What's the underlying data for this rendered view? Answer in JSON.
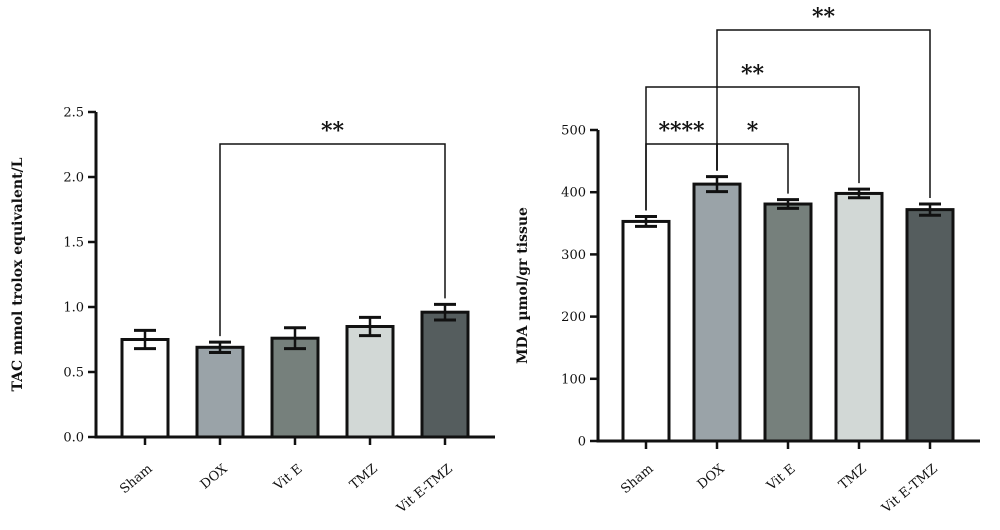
{
  "chart_data": [
    {
      "type": "bar",
      "title": "",
      "categories": [
        "Sham",
        "DOX",
        "Vit E",
        "TMZ",
        "Vit E-TMZ"
      ],
      "values": [
        0.75,
        0.69,
        0.76,
        0.85,
        0.96
      ],
      "errors": [
        0.07,
        0.04,
        0.08,
        0.07,
        0.06
      ],
      "colors": [
        "#ffffff",
        "#9aa3a8",
        "#76807c",
        "#d2d8d6",
        "#555d5e"
      ],
      "xlabel": "",
      "ylabel": "TAC mmol trolox equivalent/L",
      "ylim": [
        0,
        2.5
      ],
      "yticks": [
        "0.0",
        "0.5",
        "1.0",
        "1.5",
        "2.0",
        "2.5"
      ],
      "grid": false,
      "significance": [
        {
          "from": 1,
          "to": 4,
          "label": "**"
        }
      ]
    },
    {
      "type": "bar",
      "title": "",
      "categories": [
        "Sham",
        "DOX",
        "Vit E",
        "TMZ",
        "Vit E-TMZ"
      ],
      "values": [
        353,
        413,
        381,
        398,
        372
      ],
      "errors": [
        8,
        12,
        7,
        7,
        9
      ],
      "colors": [
        "#ffffff",
        "#9aa3a8",
        "#76807c",
        "#d2d8d6",
        "#555d5e"
      ],
      "xlabel": "",
      "ylabel": "MDA µmol/gr tissue",
      "ylim": [
        0,
        500
      ],
      "yticks": [
        "0",
        "100",
        "200",
        "300",
        "400",
        "500"
      ],
      "grid": false,
      "significance": [
        {
          "from": 0,
          "to": 1,
          "label": "****"
        },
        {
          "from": 1,
          "to": 2,
          "label": "*"
        },
        {
          "from": 0,
          "to": 3,
          "label": "**"
        },
        {
          "from": 1,
          "to": 4,
          "label": "**"
        }
      ]
    }
  ]
}
